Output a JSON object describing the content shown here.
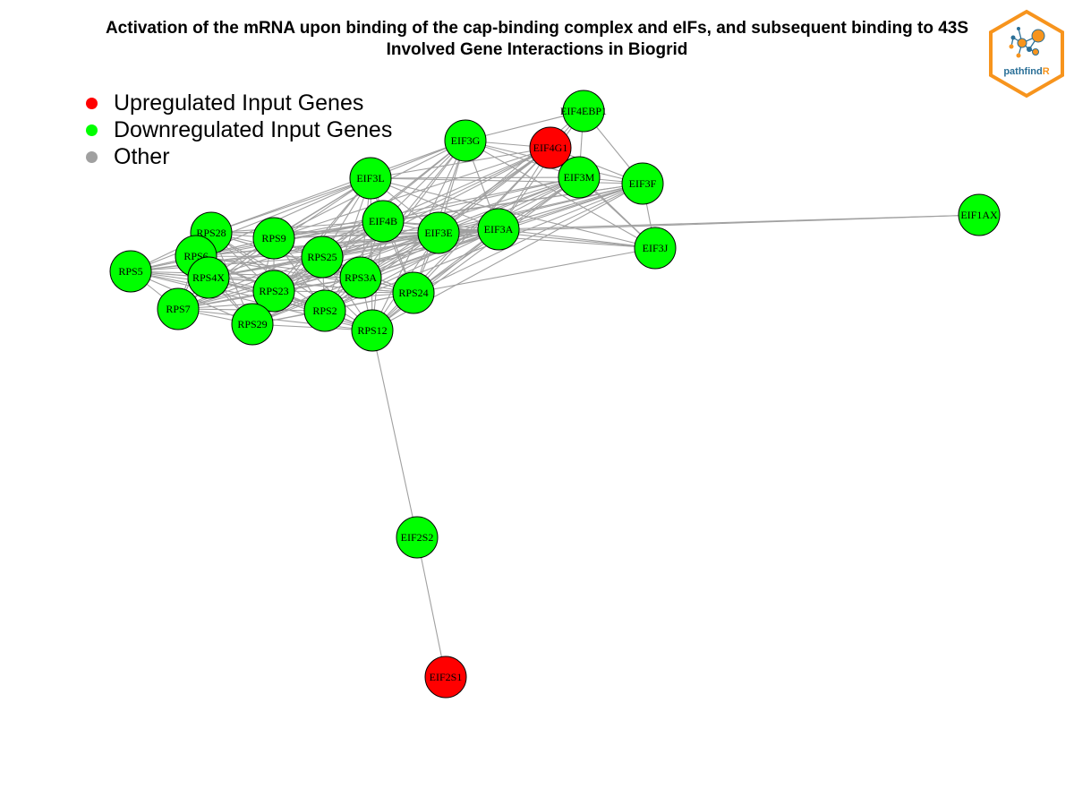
{
  "title": {
    "line1": "Activation of the mRNA upon binding of the cap-binding complex and eIFs, and subsequent binding to 43S",
    "line2": "Involved Gene Interactions in Biogrid"
  },
  "legend": {
    "items": [
      {
        "label": "Upregulated Input Genes",
        "color": "#ff0000"
      },
      {
        "label": "Downregulated Input Genes",
        "color": "#00ff00"
      },
      {
        "label": "Other",
        "color": "#a0a0a0"
      }
    ]
  },
  "logo": {
    "text_part1": "pathfind",
    "text_part2": "R",
    "border_color": "#f7941d",
    "text_color": "#2a6f97"
  },
  "colors": {
    "edge": "#a0a0a0",
    "up": "#ff0000",
    "down": "#00ff00",
    "node_border": "#000000"
  },
  "nodes": [
    {
      "id": "EIF4EBP1",
      "type": "down"
    },
    {
      "id": "EIF3G",
      "type": "down"
    },
    {
      "id": "EIF4G1",
      "type": "up"
    },
    {
      "id": "EIF3M",
      "type": "down"
    },
    {
      "id": "EIF3F",
      "type": "down"
    },
    {
      "id": "EIF3L",
      "type": "down"
    },
    {
      "id": "EIF4B",
      "type": "down"
    },
    {
      "id": "EIF3E",
      "type": "down"
    },
    {
      "id": "EIF3A",
      "type": "down"
    },
    {
      "id": "EIF3J",
      "type": "down"
    },
    {
      "id": "EIF1AX",
      "type": "down"
    },
    {
      "id": "RPS28",
      "type": "down"
    },
    {
      "id": "RPS9",
      "type": "down"
    },
    {
      "id": "RPS6",
      "type": "down"
    },
    {
      "id": "RPS25",
      "type": "down"
    },
    {
      "id": "RPS5",
      "type": "down"
    },
    {
      "id": "RPS4X",
      "type": "down"
    },
    {
      "id": "RPS3A",
      "type": "down"
    },
    {
      "id": "RPS23",
      "type": "down"
    },
    {
      "id": "RPS24",
      "type": "down"
    },
    {
      "id": "RPS7",
      "type": "down"
    },
    {
      "id": "RPS2",
      "type": "down"
    },
    {
      "id": "RPS29",
      "type": "down"
    },
    {
      "id": "RPS12",
      "type": "down"
    },
    {
      "id": "EIF2S2",
      "type": "down"
    },
    {
      "id": "EIF2S1",
      "type": "up"
    }
  ]
}
